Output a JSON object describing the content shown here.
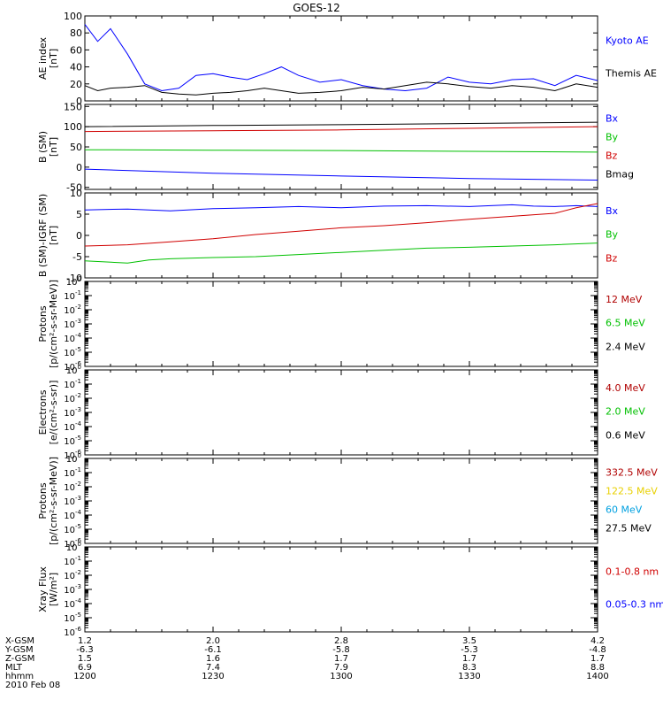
{
  "title": "GOES-12",
  "chart_data": [
    {
      "type": "line",
      "ylabel_lines": [
        "AE index",
        "[nT]"
      ],
      "ylim": [
        0,
        100
      ],
      "yticks": [
        0,
        20,
        40,
        60,
        80,
        100
      ],
      "series": [
        {
          "name": "Kyoto AE",
          "color": "#0000ff",
          "x": [
            0,
            3,
            6,
            10,
            14,
            18,
            22,
            26,
            30,
            34,
            38,
            42,
            46,
            50,
            55,
            60,
            65,
            70,
            75,
            80,
            85,
            90,
            95,
            100,
            105,
            110,
            115,
            120
          ],
          "y": [
            90,
            70,
            85,
            55,
            20,
            12,
            15,
            30,
            32,
            28,
            25,
            32,
            40,
            30,
            22,
            25,
            18,
            14,
            12,
            15,
            28,
            22,
            20,
            25,
            26,
            18,
            30,
            24
          ]
        },
        {
          "name": "Themis AE",
          "color": "#000000",
          "x": [
            0,
            3,
            6,
            10,
            14,
            18,
            22,
            26,
            30,
            34,
            38,
            42,
            46,
            50,
            55,
            60,
            65,
            70,
            75,
            80,
            85,
            90,
            95,
            100,
            105,
            110,
            115,
            120
          ],
          "y": [
            18,
            12,
            15,
            16,
            18,
            10,
            8,
            7,
            9,
            10,
            12,
            15,
            12,
            9,
            10,
            12,
            16,
            14,
            18,
            22,
            20,
            17,
            15,
            18,
            16,
            12,
            20,
            16
          ]
        }
      ]
    },
    {
      "type": "line",
      "ylabel_lines": [
        "B (SM)",
        "[nT]"
      ],
      "ylim": [
        -55,
        155
      ],
      "yticks": [
        -50,
        0,
        50,
        100,
        150
      ],
      "series": [
        {
          "name": "Bx",
          "color": "#0000ff",
          "x": [
            0,
            30,
            60,
            90,
            120
          ],
          "y": [
            -5,
            -15,
            -22,
            -28,
            -32
          ]
        },
        {
          "name": "By",
          "color": "#00c000",
          "x": [
            0,
            30,
            60,
            90,
            120
          ],
          "y": [
            43,
            42,
            41,
            39,
            37
          ]
        },
        {
          "name": "Bz",
          "color": "#d00000",
          "x": [
            0,
            30,
            60,
            90,
            120
          ],
          "y": [
            88,
            90,
            92,
            96,
            100
          ]
        },
        {
          "name": "Bmag",
          "color": "#000000",
          "x": [
            0,
            30,
            60,
            90,
            120
          ],
          "y": [
            100,
            103,
            105,
            108,
            111
          ]
        }
      ]
    },
    {
      "type": "line",
      "ylabel_lines": [
        "B (SM)-IGRF (SM)",
        "[nT]"
      ],
      "ylim": [
        -10,
        10
      ],
      "yticks": [
        -10,
        -5,
        0,
        5,
        10
      ],
      "series": [
        {
          "name": "Bx",
          "color": "#0000ff",
          "x": [
            0,
            10,
            20,
            30,
            40,
            50,
            60,
            70,
            80,
            90,
            100,
            105,
            110,
            115,
            120
          ],
          "y": [
            6,
            6.2,
            5.8,
            6.3,
            6.5,
            6.8,
            6.5,
            6.9,
            7.0,
            6.8,
            7.2,
            6.9,
            6.8,
            7.0,
            6.8
          ]
        },
        {
          "name": "By",
          "color": "#00c000",
          "x": [
            0,
            10,
            15,
            20,
            30,
            40,
            50,
            60,
            70,
            80,
            90,
            100,
            110,
            120
          ],
          "y": [
            -6,
            -6.5,
            -5.8,
            -5.5,
            -5.2,
            -5.0,
            -4.5,
            -4.0,
            -3.5,
            -3.0,
            -2.8,
            -2.5,
            -2.2,
            -1.8
          ]
        },
        {
          "name": "Bz",
          "color": "#d00000",
          "x": [
            0,
            10,
            20,
            30,
            40,
            50,
            60,
            70,
            80,
            90,
            100,
            110,
            115,
            120
          ],
          "y": [
            -2.5,
            -2.2,
            -1.5,
            -0.8,
            0.2,
            1.0,
            1.8,
            2.3,
            3.0,
            3.8,
            4.5,
            5.2,
            6.5,
            7.5
          ]
        }
      ]
    },
    {
      "type": "line",
      "ylabel_lines": [
        "Protons",
        "[p/(cm²-s-sr-MeV)]"
      ],
      "ylim_exp": [
        -6,
        0
      ],
      "series": [
        {
          "name": "12 MeV",
          "color": "#b00000",
          "x": [],
          "y": []
        },
        {
          "name": "6.5 MeV",
          "color": "#00c000",
          "x": [],
          "y": []
        },
        {
          "name": "2.4 MeV",
          "color": "#000000",
          "x": [],
          "y": []
        }
      ]
    },
    {
      "type": "line",
      "ylabel_lines": [
        "Electrons",
        "[e/(cm²-s-sr)]"
      ],
      "ylim_exp": [
        -6,
        0
      ],
      "series": [
        {
          "name": "4.0 MeV",
          "color": "#b00000",
          "x": [],
          "y": []
        },
        {
          "name": "2.0 MeV",
          "color": "#00c000",
          "x": [],
          "y": []
        },
        {
          "name": "0.6 MeV",
          "color": "#000000",
          "x": [],
          "y": []
        }
      ]
    },
    {
      "type": "line",
      "ylabel_lines": [
        "Protons",
        "[p/(cm²-s-sr-MeV)]"
      ],
      "ylim_exp": [
        -6,
        0
      ],
      "series": [
        {
          "name": "332.5 MeV",
          "color": "#b00000",
          "x": [],
          "y": []
        },
        {
          "name": "122.5 MeV",
          "color": "#e8d000",
          "x": [],
          "y": []
        },
        {
          "name": "60 MeV",
          "color": "#00a0e0",
          "x": [],
          "y": []
        },
        {
          "name": "27.5 MeV",
          "color": "#000000",
          "x": [],
          "y": []
        }
      ]
    },
    {
      "type": "line",
      "ylabel_lines": [
        "Xray Flux",
        "[W/m²]"
      ],
      "ylim_exp": [
        -6,
        0
      ],
      "series": [
        {
          "name": "0.1-0.8 nm",
          "color": "#d00000",
          "x": [],
          "y": []
        },
        {
          "name": "0.05-0.3 nm",
          "color": "#0000ff",
          "x": [],
          "y": []
        }
      ]
    }
  ],
  "time_axis": {
    "xlim": [
      0,
      120
    ],
    "tick_minutes": [
      0,
      30,
      60,
      90,
      120
    ],
    "rows": [
      {
        "label": "X-GSM",
        "values": [
          "1.2",
          "2.0",
          "2.8",
          "3.5",
          "4.2"
        ]
      },
      {
        "label": "Y-GSM",
        "values": [
          "-6.3",
          "-6.1",
          "-5.8",
          "-5.3",
          "-4.8"
        ]
      },
      {
        "label": "Z-GSM",
        "values": [
          "1.5",
          "1.6",
          "1.7",
          "1.7",
          "1.7"
        ]
      },
      {
        "label": "MLT",
        "values": [
          "6.9",
          "7.4",
          "7.9",
          "8.3",
          "8.8"
        ]
      },
      {
        "label": "hhmm",
        "values": [
          "1200",
          "1230",
          "1300",
          "1330",
          "1400"
        ]
      }
    ],
    "date": "2010 Feb 08"
  }
}
